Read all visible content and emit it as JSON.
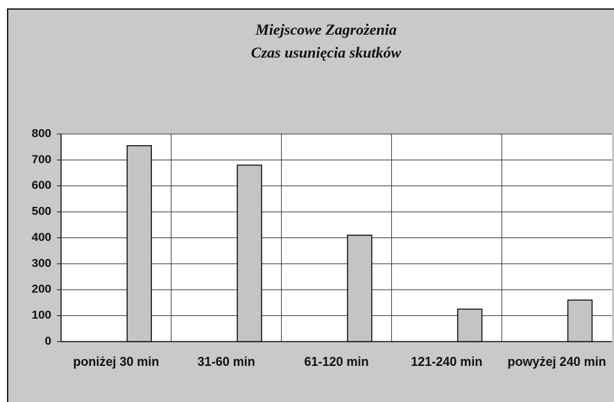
{
  "chart_data": {
    "type": "bar",
    "title": "Miejscowe Zagrożenia",
    "subtitle": "Czas usunięcia skutków",
    "categories": [
      "poniżej 30 min",
      "31-60 min",
      "61-120 min",
      "121-240 min",
      "powyżej 240 min"
    ],
    "values": [
      755,
      680,
      410,
      125,
      160
    ],
    "color": "#c4c4c4",
    "ylim": [
      0,
      800
    ],
    "yticks": [
      0,
      100,
      200,
      300,
      400,
      500,
      600,
      700,
      800
    ],
    "grid": true
  }
}
